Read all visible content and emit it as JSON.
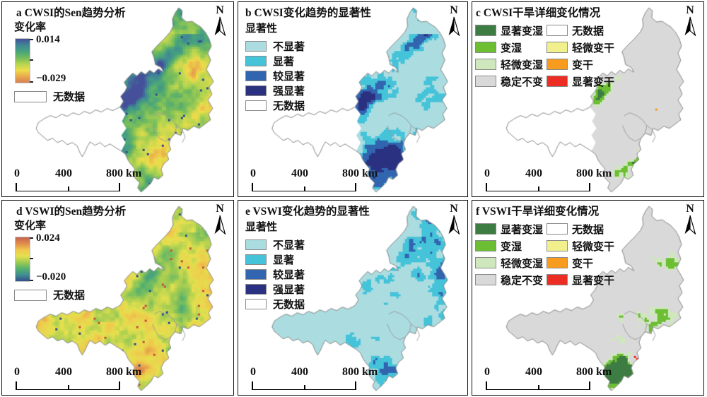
{
  "figure": {
    "background": "#ffffff",
    "panel_border": "#111111",
    "boundary_color": "#8a8a8a"
  },
  "shared": {
    "north_label": "N",
    "scale_labels": {
      "zero": "0",
      "four_hundred": "400",
      "eight_hundred": "800 km"
    }
  },
  "sig_legend": {
    "title": "显著性",
    "items": [
      {
        "label": "不显著",
        "color": "#aadce0"
      },
      {
        "label": "显著",
        "color": "#44c3d9"
      },
      {
        "label": "较显著",
        "color": "#3265af"
      },
      {
        "label": "强显著",
        "color": "#2a3180"
      },
      {
        "label": "无数据",
        "color": "#ffffff"
      }
    ]
  },
  "detail_legend": {
    "left": [
      {
        "label": "显著变湿",
        "color": "#3d7c42"
      },
      {
        "label": "变湿",
        "color": "#6cbe33"
      },
      {
        "label": "轻微变湿",
        "color": "#cfe7bd"
      },
      {
        "label": "稳定不变",
        "color": "#d9d9d9"
      }
    ],
    "right": [
      {
        "label": "无数据",
        "color": "#ffffff"
      },
      {
        "label": "轻微变干",
        "color": "#f2ef8d"
      },
      {
        "label": "变干",
        "color": "#f79c1f"
      },
      {
        "label": "显著变干",
        "color": "#ec2d24"
      }
    ]
  },
  "panels": {
    "a": {
      "title": "a CWSI的Sen趋势分析",
      "legend_title": "变化率",
      "max": "0.014",
      "min": "−0.029",
      "no_data": "无数据",
      "gradient": [
        "#454f9a",
        "#3f8796",
        "#47a37c",
        "#73bb5c",
        "#b4d44f",
        "#eedd4b",
        "#e9a94b",
        "#d97f55"
      ]
    },
    "b": {
      "title": "b CWSI变化趋势的显著性"
    },
    "c": {
      "title": "c CWSI干旱详细变化情况"
    },
    "d": {
      "title": "d VSWI的Sen趋势分析",
      "legend_title": "变化率",
      "max": "0.024",
      "min": "−0.020",
      "no_data": "无数据",
      "gradient": [
        "#c5624f",
        "#e08d4b",
        "#f0c84c",
        "#e4e04e",
        "#9cca52",
        "#57b26d",
        "#3f8d90",
        "#364e8e"
      ]
    },
    "e": {
      "title": "e VSWI变化趋势的显著性"
    },
    "f": {
      "title": "f VSWI干旱详细变化情况"
    }
  }
}
